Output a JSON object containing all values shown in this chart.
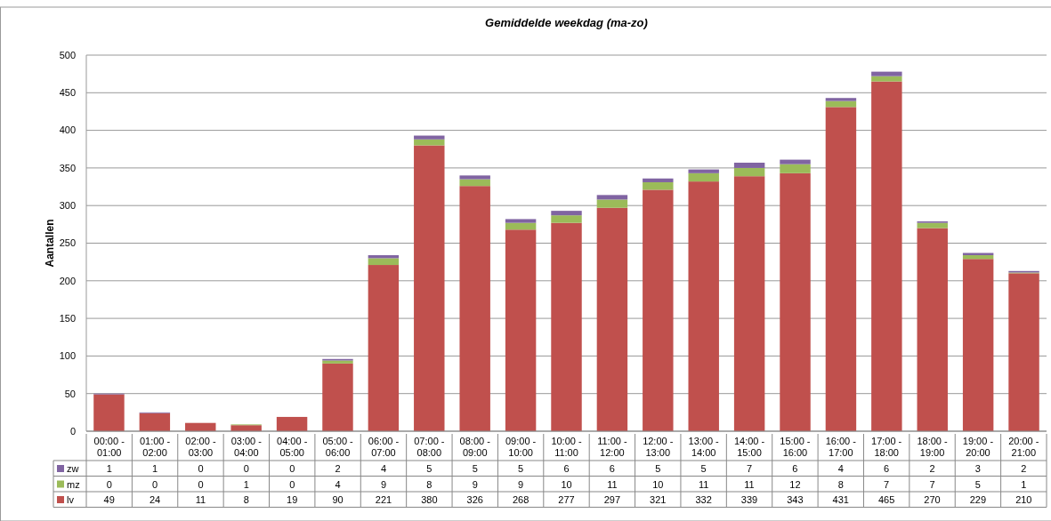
{
  "chart_data": {
    "type": "bar",
    "title": "Gemiddelde weekdag (ma-zo)",
    "ylabel": "Aantallen",
    "stacked": true,
    "data_labels": true,
    "legend": "bottom left",
    "grid": "y",
    "categories": [
      "00:00 - 01:00",
      "01:00 - 02:00",
      "02:00 - 03:00",
      "03:00 - 04:00",
      "04:00 - 05:00",
      "05:00 - 06:00",
      "06:00 - 07:00",
      "07:00 - 08:00",
      "08:00 - 09:00",
      "09:00 - 10:00",
      "10:00 - 11:00",
      "11:00 - 12:00",
      "12:00 - 13:00",
      "13:00 - 14:00",
      "14:00 - 15:00",
      "15:00 - 16:00",
      "16:00 - 17:00",
      "17:00 - 18:00",
      "18:00 - 19:00",
      "19:00 - 20:00",
      "20:00 - 21:00"
    ],
    "series": [
      {
        "name": "lv",
        "color": "#c0504d",
        "values": [
          49,
          24,
          11,
          8,
          19,
          90,
          221,
          380,
          326,
          268,
          277,
          297,
          321,
          332,
          339,
          343,
          431,
          465,
          270,
          229,
          210
        ]
      },
      {
        "name": "mz",
        "color": "#9bbb59",
        "values": [
          0,
          0,
          0,
          1,
          0,
          4,
          9,
          8,
          9,
          9,
          10,
          11,
          10,
          11,
          11,
          12,
          8,
          7,
          7,
          5,
          1
        ]
      },
      {
        "name": "zw",
        "color": "#8064a2",
        "values": [
          1,
          1,
          0,
          0,
          0,
          2,
          4,
          5,
          5,
          5,
          6,
          6,
          5,
          5,
          7,
          6,
          4,
          6,
          2,
          3,
          2
        ]
      }
    ],
    "ylim": [
      0,
      500
    ],
    "yticks": [
      0,
      50,
      100,
      150,
      200,
      250,
      300,
      350,
      400,
      450,
      500
    ]
  }
}
